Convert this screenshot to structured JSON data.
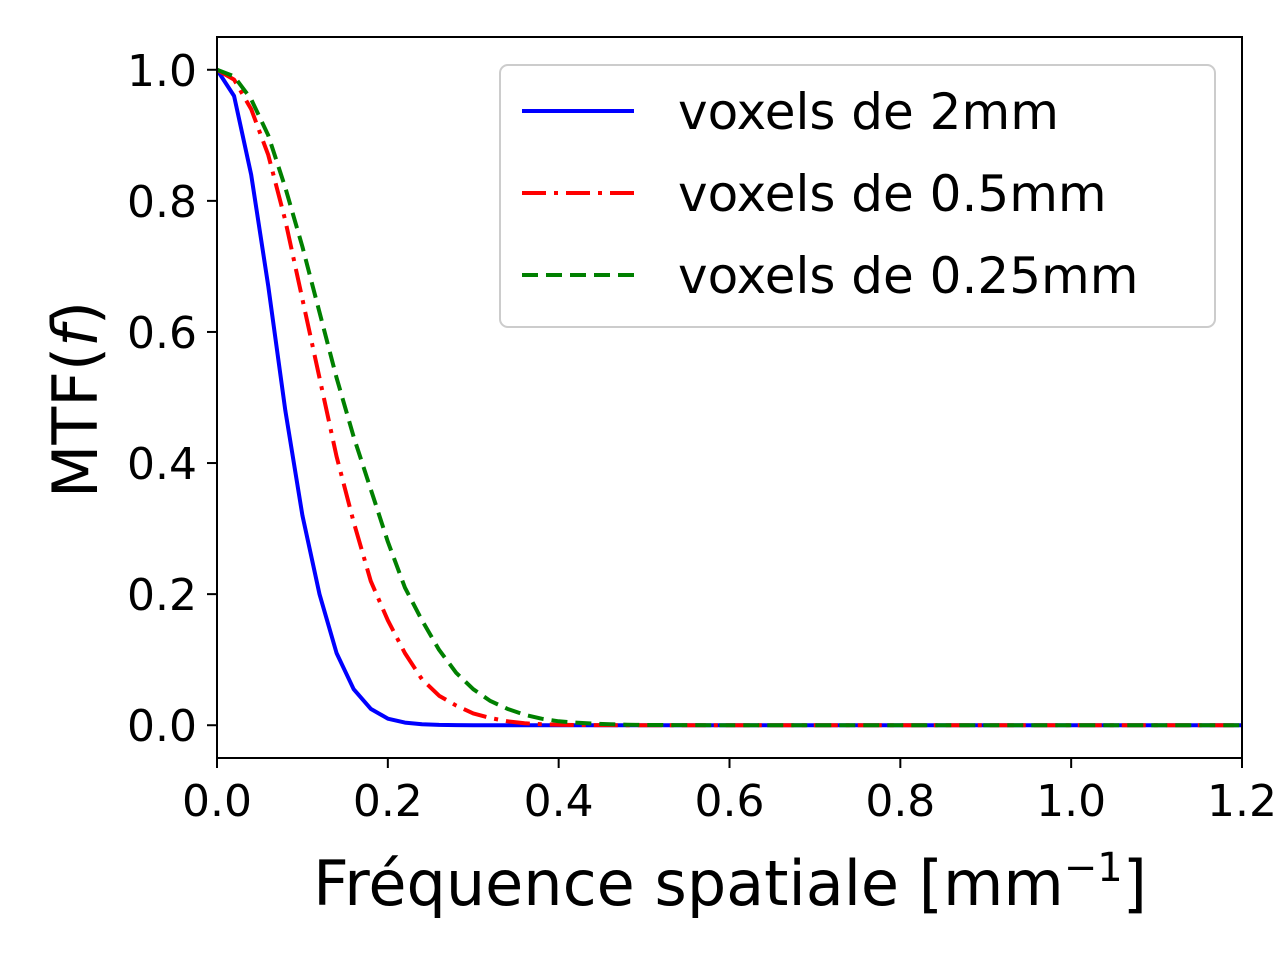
{
  "chart_data": {
    "type": "line",
    "xlabel": "Fréquence spatiale [mm",
    "xlabel_sup": "−1",
    "xlabel_end": "]",
    "ylabel": "MTF(",
    "ylabel_var": "f",
    "ylabel_end": ")",
    "xlim": [
      0.0,
      1.2
    ],
    "ylim": [
      -0.05,
      1.05
    ],
    "xticks": [
      0.0,
      0.2,
      0.4,
      0.6,
      0.8,
      1.0,
      1.2
    ],
    "xtick_labels": [
      "0.0",
      "0.2",
      "0.4",
      "0.6",
      "0.8",
      "1.0",
      "1.2"
    ],
    "yticks": [
      0.0,
      0.2,
      0.4,
      0.6,
      0.8,
      1.0
    ],
    "ytick_labels": [
      "0.0",
      "0.2",
      "0.4",
      "0.6",
      "0.8",
      "1.0"
    ],
    "grid": false,
    "legend_position": "top-right",
    "x": [
      0.0,
      0.02,
      0.04,
      0.06,
      0.08,
      0.1,
      0.12,
      0.14,
      0.16,
      0.18,
      0.2,
      0.22,
      0.24,
      0.26,
      0.28,
      0.3,
      0.32,
      0.34,
      0.36,
      0.38,
      0.4,
      0.42,
      0.44,
      0.46,
      0.48,
      0.5,
      0.55,
      0.6,
      0.7,
      0.8,
      0.9,
      1.0,
      1.1,
      1.2
    ],
    "series": [
      {
        "name": "voxels de 2mm",
        "color": "#0000ff",
        "style": "solid",
        "values": [
          1.0,
          0.96,
          0.84,
          0.67,
          0.48,
          0.32,
          0.2,
          0.11,
          0.055,
          0.025,
          0.01,
          0.004,
          0.0015,
          0.0005,
          0.0002,
          0.0,
          0.0,
          0.0,
          0.0,
          0.0,
          0.0,
          0.0,
          0.0,
          0.0,
          0.0,
          0.0,
          0.0,
          0.0,
          0.0,
          0.0,
          0.0,
          0.0,
          0.0,
          0.0
        ]
      },
      {
        "name": "voxels de 0.5mm",
        "color": "#ff0000",
        "style": "dashdot",
        "values": [
          1.0,
          0.985,
          0.94,
          0.87,
          0.77,
          0.65,
          0.53,
          0.41,
          0.31,
          0.22,
          0.16,
          0.11,
          0.07,
          0.045,
          0.03,
          0.018,
          0.011,
          0.006,
          0.003,
          0.0015,
          0.0008,
          0.0004,
          0.0002,
          0.0001,
          0.0,
          0.0,
          0.0,
          0.0,
          0.0,
          0.0,
          0.0,
          0.0,
          0.0,
          0.0
        ]
      },
      {
        "name": "voxels de 0.25mm",
        "color": "#008000",
        "style": "dashed",
        "values": [
          1.0,
          0.99,
          0.955,
          0.9,
          0.82,
          0.73,
          0.63,
          0.53,
          0.44,
          0.36,
          0.28,
          0.21,
          0.16,
          0.115,
          0.08,
          0.055,
          0.037,
          0.025,
          0.016,
          0.01,
          0.006,
          0.004,
          0.0025,
          0.0015,
          0.0008,
          0.0004,
          0.0001,
          0.0,
          0.0,
          0.0,
          0.0,
          0.0,
          0.0,
          0.0
        ]
      }
    ]
  }
}
